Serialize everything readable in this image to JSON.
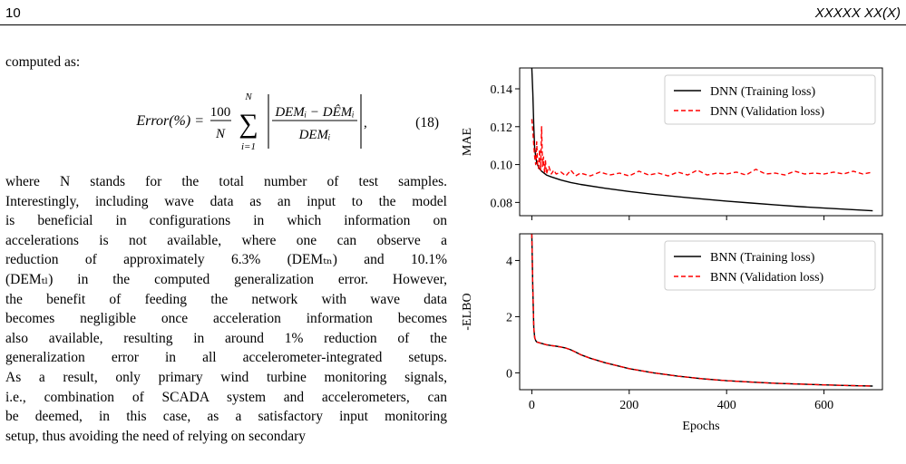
{
  "header": {
    "page_number": "10",
    "journal": "XXXXX XX(X)"
  },
  "intro_text": "computed as:",
  "equation": {
    "lhs": "Error(%) =",
    "coef_num": "100",
    "coef_den": "N",
    "sum_upper": "N",
    "sum_lower": "i=1",
    "frac_num": "DEMᵢ − DÊMᵢ",
    "frac_den": "DEMᵢ",
    "number": "(18)"
  },
  "body_lines": [
    "where  N  stands  for  the  total  number  of  test  samples.",
    "Interestingly, including wave data as an input to the model",
    "is  beneficial  in  configurations  in  which  information  on",
    "accelerations is not available, where one can observe a",
    "reduction of approximately 6.3% (DEMₜₙ) and 10.1%",
    "(DEMₜₗ) in the computed generalization error. However,",
    "the  benefit  of  feeding  the  network  with  wave  data",
    "becomes negligible once acceleration information becomes",
    "also  available,  resulting  in  around  1%  reduction  of  the",
    "generalization error in all accelerometer-integrated setups.",
    "As a result, only primary wind turbine monitoring signals,",
    "i.e., combination of SCADA system and accelerometers, can",
    "be deemed, in this case, as a satisfactory input monitoring",
    "setup,  thus  avoiding  the  need  of  relying  on  secondary"
  ],
  "chart_data": [
    {
      "type": "line",
      "ylabel": "MAE",
      "xlabel": "",
      "xlim": [
        -25,
        720
      ],
      "ylim": [
        0.073,
        0.151
      ],
      "yticks": [
        0.08,
        0.1,
        0.12,
        0.14
      ],
      "ytick_labels": [
        "0.08",
        "0.10",
        "0.12",
        "0.14"
      ],
      "xticks": [
        0,
        200,
        400,
        600
      ],
      "legend_position": "top-right",
      "grid": false,
      "series": [
        {
          "name": "DNN (Training loss)",
          "color": "#000000",
          "style": "solid",
          "x": [
            0,
            2,
            4,
            6,
            10,
            15,
            20,
            30,
            40,
            60,
            80,
            100,
            150,
            200,
            250,
            300,
            350,
            400,
            450,
            500,
            550,
            600,
            650,
            700
          ],
          "y": [
            0.151,
            0.138,
            0.12,
            0.108,
            0.101,
            0.098,
            0.0965,
            0.0945,
            0.0935,
            0.0918,
            0.0905,
            0.0895,
            0.0875,
            0.0858,
            0.0843,
            0.083,
            0.0818,
            0.0807,
            0.0797,
            0.0787,
            0.0778,
            0.077,
            0.0763,
            0.0756
          ]
        },
        {
          "name": "DNN (Validation loss)",
          "color": "#ff0000",
          "style": "dashed",
          "x": [
            0,
            2,
            4,
            6,
            8,
            10,
            12,
            14,
            16,
            18,
            20,
            22,
            24,
            26,
            28,
            30,
            35,
            40,
            45,
            50,
            60,
            70,
            80,
            90,
            100,
            120,
            140,
            160,
            180,
            200,
            220,
            240,
            260,
            280,
            300,
            320,
            340,
            360,
            380,
            400,
            420,
            440,
            460,
            480,
            500,
            520,
            540,
            560,
            580,
            600,
            620,
            640,
            660,
            680,
            700
          ],
          "y": [
            0.124,
            0.118,
            0.11,
            0.104,
            0.1,
            0.112,
            0.099,
            0.098,
            0.108,
            0.097,
            0.12,
            0.099,
            0.104,
            0.096,
            0.102,
            0.095,
            0.099,
            0.095,
            0.097,
            0.095,
            0.096,
            0.094,
            0.097,
            0.094,
            0.0955,
            0.094,
            0.096,
            0.0945,
            0.0955,
            0.094,
            0.0965,
            0.0945,
            0.0955,
            0.094,
            0.096,
            0.0945,
            0.097,
            0.0945,
            0.0955,
            0.095,
            0.096,
            0.0945,
            0.0975,
            0.095,
            0.0955,
            0.0945,
            0.0965,
            0.095,
            0.0955,
            0.095,
            0.096,
            0.095,
            0.0965,
            0.095,
            0.096
          ]
        }
      ]
    },
    {
      "type": "line",
      "ylabel": "-ELBO",
      "xlabel": "Epochs",
      "xlim": [
        -25,
        720
      ],
      "ylim": [
        -0.6,
        4.95
      ],
      "yticks": [
        0,
        2,
        4
      ],
      "ytick_labels": [
        "0",
        "2",
        "4"
      ],
      "xticks": [
        0,
        200,
        400,
        600
      ],
      "xtick_labels": [
        "0",
        "200",
        "400",
        "600"
      ],
      "legend_position": "top-right",
      "grid": false,
      "series": [
        {
          "name": "BNN (Training loss)",
          "color": "#000000",
          "style": "solid",
          "x": [
            0,
            2,
            4,
            6,
            8,
            10,
            15,
            20,
            30,
            40,
            50,
            60,
            70,
            80,
            90,
            100,
            120,
            150,
            200,
            250,
            300,
            350,
            400,
            450,
            500,
            550,
            600,
            650,
            700
          ],
          "y": [
            4.95,
            3.0,
            1.6,
            1.25,
            1.15,
            1.1,
            1.07,
            1.05,
            1.0,
            0.97,
            0.95,
            0.92,
            0.88,
            0.82,
            0.74,
            0.65,
            0.52,
            0.36,
            0.15,
            0.0,
            -0.12,
            -0.21,
            -0.28,
            -0.33,
            -0.37,
            -0.4,
            -0.43,
            -0.45,
            -0.47
          ]
        },
        {
          "name": "BNN (Validation loss)",
          "color": "#ff0000",
          "style": "dashed",
          "x": [
            0,
            2,
            4,
            6,
            8,
            10,
            15,
            20,
            30,
            40,
            50,
            60,
            70,
            80,
            90,
            100,
            120,
            150,
            200,
            250,
            300,
            350,
            400,
            450,
            500,
            550,
            600,
            650,
            700
          ],
          "y": [
            4.95,
            3.0,
            1.6,
            1.25,
            1.15,
            1.1,
            1.07,
            1.05,
            1.0,
            0.97,
            0.95,
            0.92,
            0.88,
            0.82,
            0.74,
            0.65,
            0.52,
            0.36,
            0.15,
            0.0,
            -0.12,
            -0.21,
            -0.28,
            -0.33,
            -0.37,
            -0.4,
            -0.43,
            -0.45,
            -0.47
          ]
        }
      ]
    }
  ]
}
